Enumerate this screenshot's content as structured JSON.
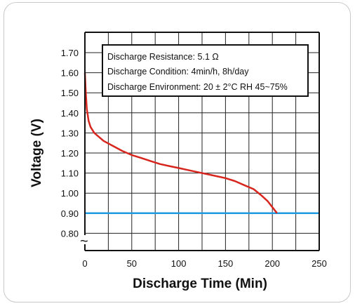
{
  "chart_data": {
    "type": "line",
    "xlabel": "Discharge Time (Min)",
    "ylabel": "Voltage (V)",
    "xlim": [
      0,
      250
    ],
    "ylim_display": [
      0.8,
      1.7
    ],
    "axis_break": "~",
    "grid": true,
    "x_ticks": [
      "0",
      "50",
      "100",
      "150",
      "200",
      "250"
    ],
    "y_ticks": [
      "0.80",
      "0.90",
      "1.00",
      "1.10",
      "1.20",
      "1.30",
      "1.40",
      "1.50",
      "1.60",
      "1.70"
    ],
    "annotations": [
      "Discharge Resistance: 5.1 Ω",
      "Discharge Condition: 4min/h, 8h/day",
      "Discharge Environment: 20 ± 2°C  RH 45~75%"
    ],
    "series": [
      {
        "color": "#d7261e",
        "x": [
          0,
          1,
          2,
          4,
          6,
          10,
          15,
          20,
          30,
          40,
          50,
          60,
          70,
          80,
          90,
          100,
          110,
          120,
          130,
          140,
          150,
          160,
          170,
          180,
          188,
          195,
          200,
          205
        ],
        "y": [
          1.6,
          1.5,
          1.42,
          1.36,
          1.33,
          1.3,
          1.28,
          1.26,
          1.235,
          1.21,
          1.19,
          1.175,
          1.16,
          1.145,
          1.135,
          1.125,
          1.115,
          1.105,
          1.095,
          1.085,
          1.075,
          1.06,
          1.04,
          1.02,
          0.99,
          0.96,
          0.93,
          0.9
        ]
      },
      {
        "color": "#1e9be0",
        "x": [
          0,
          250
        ],
        "y": [
          0.9,
          0.9
        ]
      }
    ]
  }
}
